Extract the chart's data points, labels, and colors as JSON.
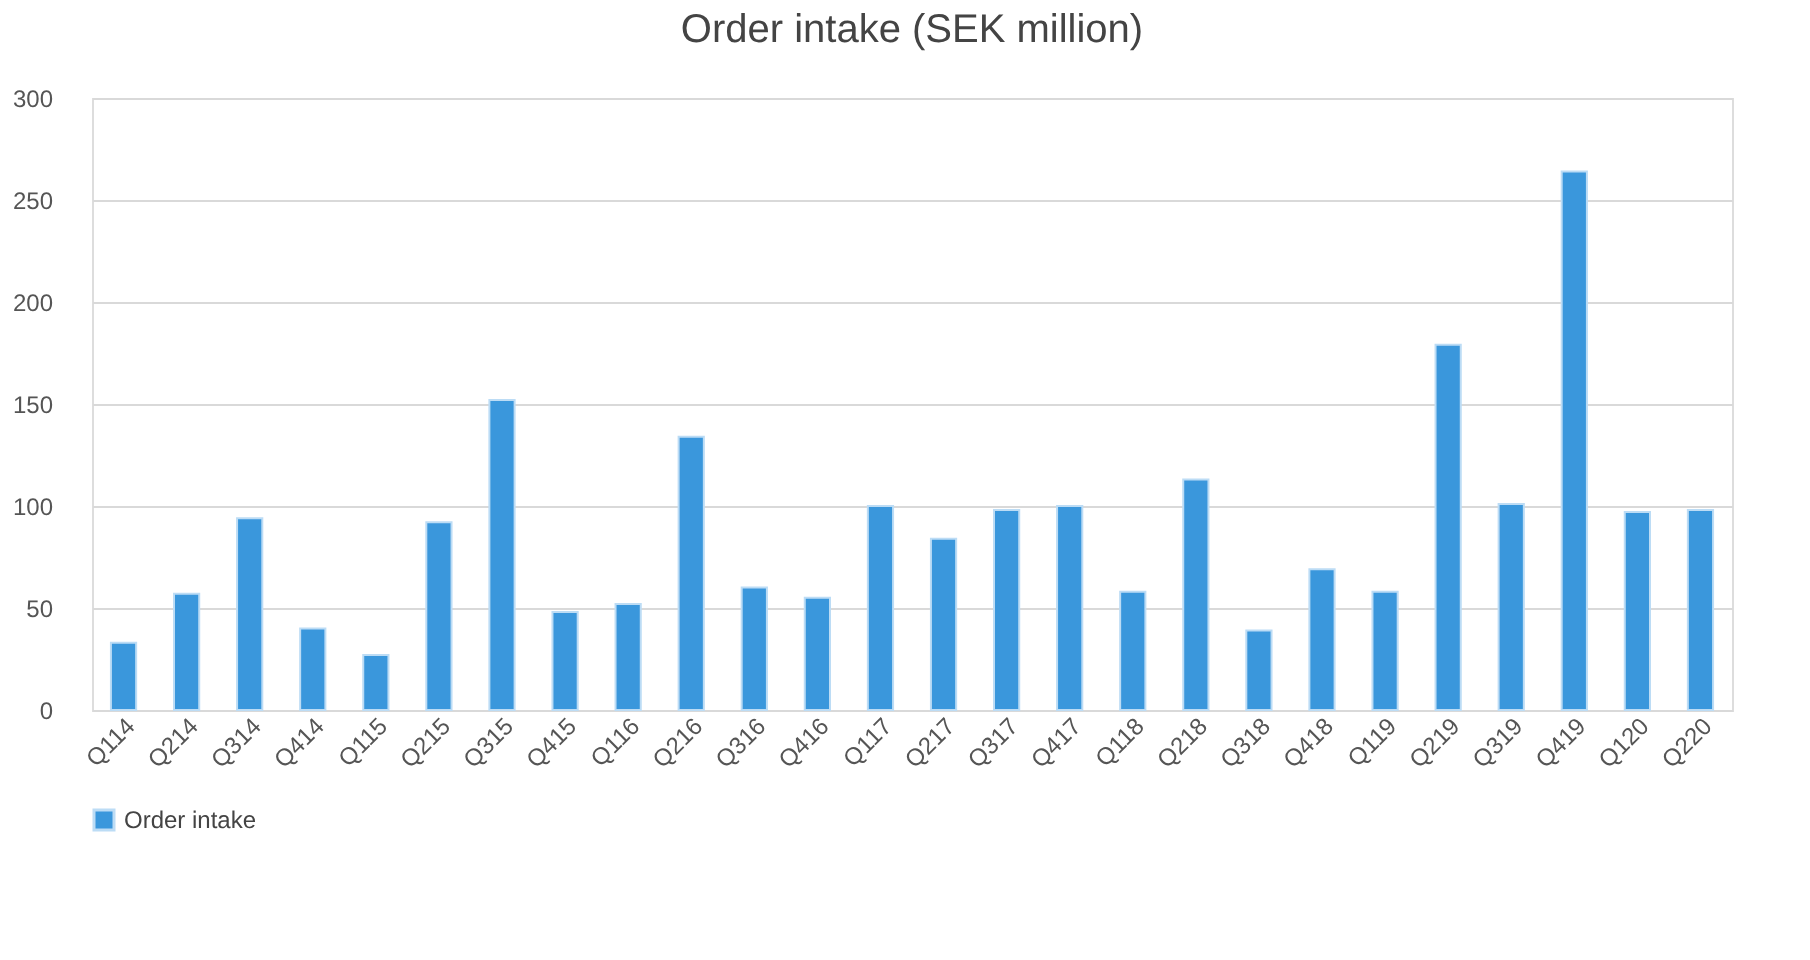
{
  "chart_data": {
    "type": "bar",
    "title": "Order intake (SEK million)",
    "categories": [
      "Q114",
      "Q214",
      "Q314",
      "Q414",
      "Q115",
      "Q215",
      "Q315",
      "Q415",
      "Q116",
      "Q216",
      "Q316",
      "Q416",
      "Q117",
      "Q217",
      "Q317",
      "Q417",
      "Q118",
      "Q218",
      "Q318",
      "Q418",
      "Q119",
      "Q219",
      "Q319",
      "Q419",
      "Q120",
      "Q220"
    ],
    "series": [
      {
        "name": "Order intake",
        "color": "#3a97dc",
        "values": [
          33,
          57,
          94,
          40,
          27,
          92,
          152,
          48,
          52,
          134,
          60,
          55,
          100,
          84,
          98,
          100,
          58,
          113,
          39,
          69,
          58,
          179,
          101,
          264,
          97,
          98
        ]
      }
    ],
    "ylim": [
      0,
      300
    ],
    "yticks": [
      0,
      50,
      100,
      150,
      200,
      250,
      300
    ],
    "grid": "y",
    "legend": "bottom"
  }
}
